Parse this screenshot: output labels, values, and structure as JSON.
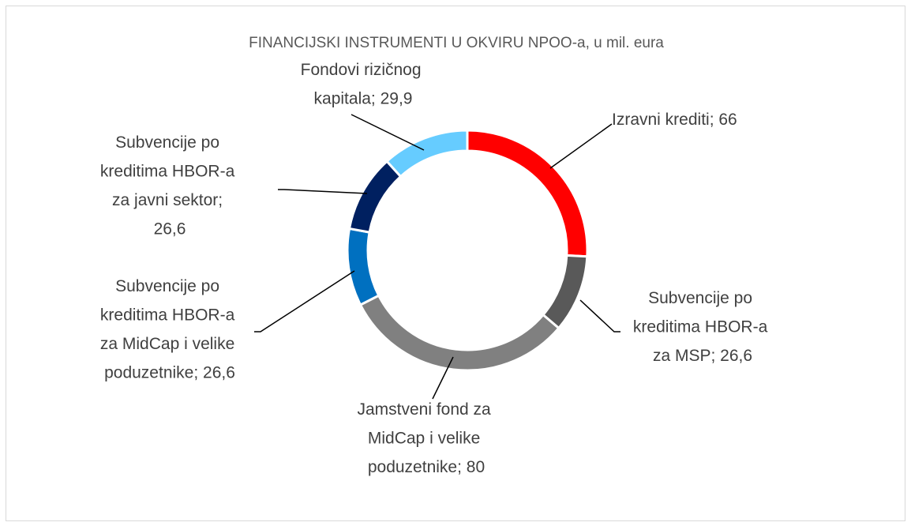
{
  "chart_data": {
    "type": "donut",
    "title": "FINANCIJSKI INSTRUMENTI U OKVIRU NPOO-a, u mil. eura",
    "categories": [
      "Izravni krediti",
      "Subvencije po kreditima HBOR-a za MSP",
      "Jamstveni fond za MidCap i velike poduzetnike",
      "Subvencije po kreditima HBOR-a za MidCap i velike poduzetnike",
      "Subvencije po kreditima HBOR-a za javni sektor",
      "Fondovi rizičnog kapitala"
    ],
    "values": [
      66,
      26.6,
      80,
      26.6,
      26.6,
      29.9
    ],
    "value_labels": [
      "66",
      "26,6",
      "80",
      "26,6",
      "26,6",
      "29,9"
    ],
    "label_separator": "; ",
    "colors": [
      "#ff0000",
      "#595959",
      "#808080",
      "#0070c0",
      "#002060",
      "#66ccff"
    ]
  }
}
